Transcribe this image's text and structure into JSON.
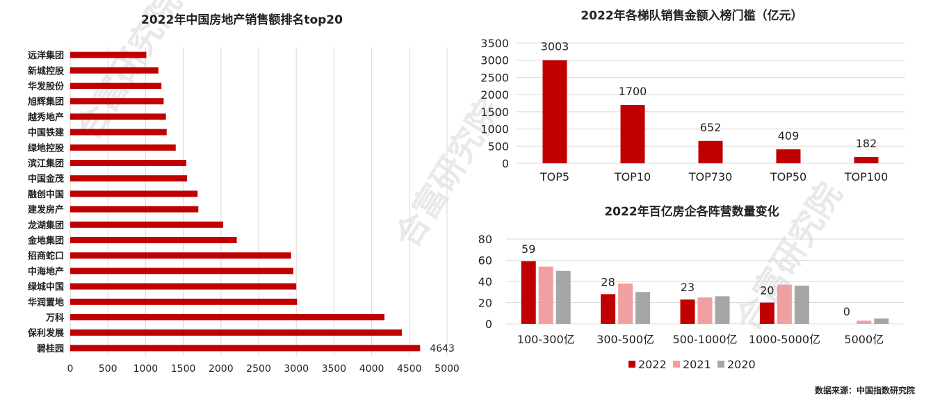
{
  "watermark": "合富研究院",
  "source": "数据来源：中国指数研究院",
  "colors": {
    "c2022": "#c00000",
    "c2021": "#f1a0a1",
    "c2020": "#a6a6a6"
  },
  "chart_data": [
    {
      "id": "ranking",
      "type": "bar",
      "orientation": "horizontal",
      "title": "2022年中国房地产销售额排名top20",
      "categories": [
        "碧桂园",
        "保利发展",
        "万科",
        "华润置地",
        "绿城中国",
        "中海地产",
        "招商蛇口",
        "金地集团",
        "龙湖集团",
        "建发房产",
        "融创中国",
        "中国金茂",
        "滨江集团",
        "绿地控股",
        "中国铁建",
        "越秀地产",
        "旭辉集团",
        "华发股份",
        "新城控股",
        "远洋集团"
      ],
      "values": [
        4643,
        4400,
        4170,
        3010,
        3000,
        2960,
        2930,
        2210,
        2030,
        1700,
        1690,
        1550,
        1540,
        1400,
        1280,
        1270,
        1240,
        1210,
        1170,
        1010
      ],
      "data_labels": [
        {
          "index": 0,
          "text": "4643"
        }
      ],
      "xlim": [
        0,
        5000
      ],
      "xticks": [
        "0",
        "500",
        "1000",
        "1500",
        "2000",
        "2500",
        "3000",
        "3500",
        "4000",
        "4500",
        "5000"
      ],
      "grid": true
    },
    {
      "id": "threshold",
      "type": "bar",
      "title": "2022年各梯队销售金额入榜门槛（亿元）",
      "categories": [
        "TOP5",
        "TOP10",
        "TOP730",
        "TOP50",
        "TOP100"
      ],
      "values": [
        3003,
        1700,
        652,
        409,
        182
      ],
      "labels": [
        "3003",
        "1700",
        "652",
        "409",
        "182"
      ],
      "ylim": [
        0,
        3500
      ],
      "yticks": [
        "0",
        "500",
        "1000",
        "1500",
        "2000",
        "2500",
        "3000",
        "3500"
      ],
      "grid": true
    },
    {
      "id": "count",
      "type": "bar",
      "title": "2022年百亿房企各阵营数量变化",
      "categories": [
        "100-300亿",
        "300-500亿",
        "500-1000亿",
        "1000-5000亿",
        "5000亿"
      ],
      "series": [
        {
          "name": "2022",
          "values": [
            59,
            28,
            23,
            20,
            0
          ],
          "labels": [
            "59",
            "28",
            "23",
            "20",
            "0"
          ]
        },
        {
          "name": "2021",
          "values": [
            54,
            38,
            25,
            37,
            3
          ]
        },
        {
          "name": "2020",
          "values": [
            50,
            30,
            26,
            36,
            5
          ]
        }
      ],
      "ylim": [
        0,
        80
      ],
      "yticks": [
        "0",
        "20",
        "40",
        "60",
        "80"
      ],
      "grid": true,
      "legend": "bottom"
    }
  ]
}
